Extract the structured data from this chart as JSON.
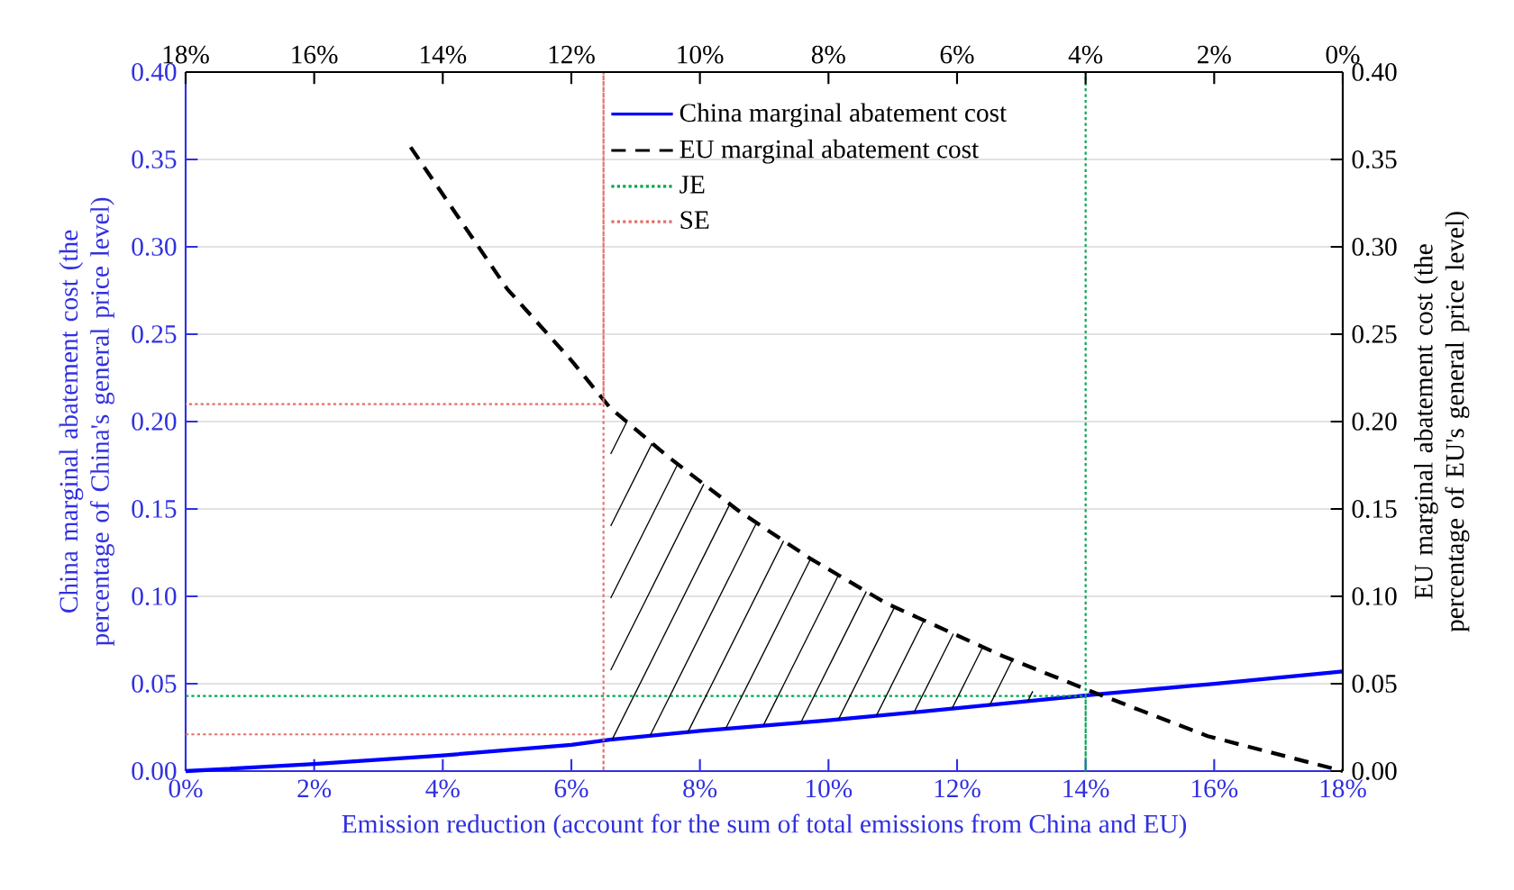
{
  "chart_data": {
    "type": "line",
    "xlabel": "Emission reduction (account for the sum of total emissions from China and EU)",
    "ylabel": "China marginal abatement cost (the percentage of China's general price level)",
    "y2label": "EU marginal abatement cost (the percentage of EU's general price level)",
    "xlim": [
      0,
      18
    ],
    "xticks": [
      {
        "value": 0,
        "label": "0%"
      },
      {
        "value": 2,
        "label": "2%"
      },
      {
        "value": 4,
        "label": "4%"
      },
      {
        "value": 6,
        "label": "6%"
      },
      {
        "value": 8,
        "label": "8%"
      },
      {
        "value": 10,
        "label": "10%"
      },
      {
        "value": 12,
        "label": "12%"
      },
      {
        "value": 14,
        "label": "14%"
      },
      {
        "value": 16,
        "label": "16%"
      },
      {
        "value": 18,
        "label": "18%"
      }
    ],
    "x2lim": [
      18,
      0
    ],
    "x2ticks": [
      {
        "value": 18,
        "label": "18%"
      },
      {
        "value": 16,
        "label": "16%"
      },
      {
        "value": 14,
        "label": "14%"
      },
      {
        "value": 12,
        "label": "12%"
      },
      {
        "value": 10,
        "label": "10%"
      },
      {
        "value": 8,
        "label": "8%"
      },
      {
        "value": 6,
        "label": "6%"
      },
      {
        "value": 4,
        "label": "4%"
      },
      {
        "value": 2,
        "label": "2%"
      },
      {
        "value": 0,
        "label": "0%"
      }
    ],
    "ylim": [
      0,
      0.4
    ],
    "yticks": [
      {
        "value": 0,
        "label": "0.00"
      },
      {
        "value": 0.05,
        "label": "0.05"
      },
      {
        "value": 0.1,
        "label": "0.10"
      },
      {
        "value": 0.15,
        "label": "0.15"
      },
      {
        "value": 0.2,
        "label": "0.20"
      },
      {
        "value": 0.25,
        "label": "0.25"
      },
      {
        "value": 0.3,
        "label": "0.30"
      },
      {
        "value": 0.35,
        "label": "0.35"
      },
      {
        "value": 0.4,
        "label": "0.40"
      }
    ],
    "y2lim": [
      0,
      0.4
    ],
    "y2ticks": [
      {
        "value": 0,
        "label": "0.00"
      },
      {
        "value": 0.05,
        "label": "0.05"
      },
      {
        "value": 0.1,
        "label": "0.10"
      },
      {
        "value": 0.15,
        "label": "0.15"
      },
      {
        "value": 0.2,
        "label": "0.20"
      },
      {
        "value": 0.25,
        "label": "0.25"
      },
      {
        "value": 0.3,
        "label": "0.30"
      },
      {
        "value": 0.35,
        "label": "0.35"
      },
      {
        "value": 0.4,
        "label": "0.40"
      }
    ],
    "grid": "y",
    "legend": "top",
    "marker": "none",
    "series": [
      {
        "name": "China marginal abatement cost",
        "color": "#0000ff",
        "line_style": "solid",
        "x": [
          0,
          2,
          4,
          6,
          6.6,
          8,
          10,
          12,
          14.2,
          16,
          18
        ],
        "values": [
          0,
          0.004,
          0.009,
          0.015,
          0.018,
          0.023,
          0.029,
          0.036,
          0.044,
          0.05,
          0.057
        ]
      },
      {
        "name": "EU marginal abatement cost",
        "color": "#000000",
        "line_style": "dashed",
        "x": [
          3.5,
          4,
          5,
          6,
          6.6,
          7.5,
          8.6,
          9.7,
          10.9,
          12.7,
          14.2,
          15.9,
          18
        ],
        "values": [
          0.357,
          0.33,
          0.276,
          0.235,
          0.208,
          0.18,
          0.149,
          0.122,
          0.096,
          0.066,
          0.044,
          0.02,
          0
        ]
      },
      {
        "name": "JE",
        "color": "#00a651",
        "line_style": "dotted",
        "x": [
          0,
          14,
          14,
          14
        ],
        "values": [
          0.043,
          0.043,
          0,
          0.4
        ]
      },
      {
        "name": "SE",
        "color": "#e0706a",
        "line_style": "dotted",
        "x": [
          0,
          6.5,
          6.5,
          6.5,
          6.5,
          0
        ],
        "values": [
          0.021,
          0.021,
          0,
          0.4,
          0.21,
          0.21
        ]
      }
    ]
  }
}
